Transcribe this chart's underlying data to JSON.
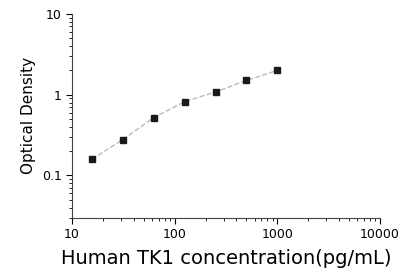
{
  "x": [
    15.6,
    31.2,
    62.5,
    125,
    250,
    500,
    1000
  ],
  "y": [
    0.158,
    0.278,
    0.52,
    0.82,
    1.08,
    1.5,
    2.0
  ],
  "xlabel": "Human TK1 concentration(pg/mL)",
  "ylabel": "Optical Density",
  "xlim": [
    10,
    10000
  ],
  "ylim": [
    0.03,
    10
  ],
  "line_color": "#bbbbbb",
  "marker_color": "#1a1a1a",
  "marker": "s",
  "marker_size": 4.5,
  "line_style": "--",
  "line_width": 1.0,
  "xlabel_fontsize": 14,
  "ylabel_fontsize": 11,
  "tick_fontsize": 9,
  "background_color": "#ffffff"
}
